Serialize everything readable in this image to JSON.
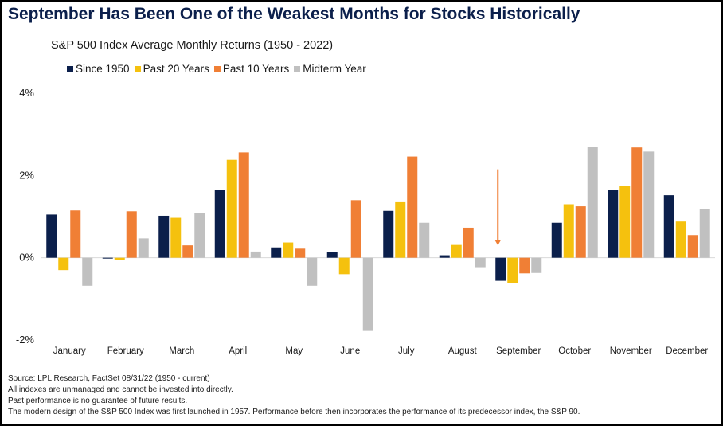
{
  "header": {
    "title": "September Has Been One of the Weakest Months for Stocks Historically"
  },
  "chart_data": {
    "type": "bar",
    "title": "S&P 500 Index Average Monthly Returns (1950 - 2022)",
    "xlabel": "",
    "ylabel": "",
    "ylim": [
      -2,
      4
    ],
    "yticks": [
      {
        "value": 4,
        "label": "4%"
      },
      {
        "value": 2,
        "label": "2%"
      },
      {
        "value": 0,
        "label": "0%"
      },
      {
        "value": -2,
        "label": "-2%"
      }
    ],
    "legend_position": "top-left",
    "grid": false,
    "categories": [
      "January",
      "February",
      "March",
      "April",
      "May",
      "June",
      "July",
      "August",
      "September",
      "October",
      "November",
      "December"
    ],
    "series": [
      {
        "name": "Since 1950",
        "color": "#0b1f4b",
        "values": [
          1.05,
          -0.02,
          1.02,
          1.65,
          0.25,
          0.13,
          1.14,
          0.06,
          -0.56,
          0.85,
          1.65,
          1.52
        ]
      },
      {
        "name": "Past 20 Years",
        "color": "#f5c10e",
        "values": [
          -0.3,
          -0.05,
          0.97,
          2.38,
          0.37,
          -0.4,
          1.35,
          0.31,
          -0.62,
          1.3,
          1.75,
          0.88
        ]
      },
      {
        "name": "Past 10 Years",
        "color": "#f07f35",
        "values": [
          1.15,
          1.13,
          0.3,
          2.56,
          0.22,
          1.4,
          2.46,
          0.73,
          -0.38,
          1.25,
          2.68,
          0.55
        ]
      },
      {
        "name": "Midterm Year",
        "color": "#c0c0c0",
        "values": [
          -0.68,
          0.47,
          1.08,
          0.15,
          -0.68,
          -1.78,
          0.85,
          -0.23,
          -0.37,
          2.7,
          2.58,
          1.18
        ]
      }
    ],
    "annotations": [
      {
        "type": "arrow",
        "category": "September",
        "color": "#f07f35"
      }
    ]
  },
  "footnotes": [
    "Source: LPL Research, FactSet 08/31/22  (1950 - current)",
    "All indexes are unmanaged and cannot be invested into directly.",
    "Past performance is no guarantee of future results.",
    "The modern design of the S&P 500 Index was first launched in 1957. Performance before then incorporates the performance of its  predecessor index, the S&P 90."
  ]
}
